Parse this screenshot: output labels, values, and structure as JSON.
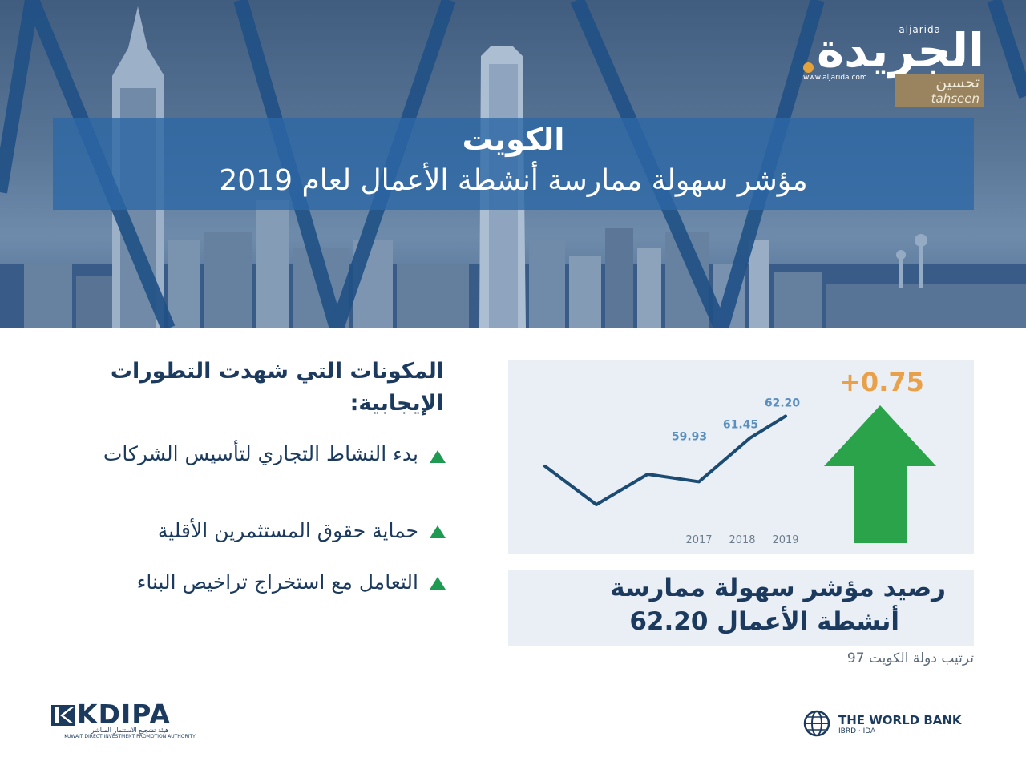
{
  "hero": {
    "title": "الكويت",
    "subtitle": "مؤشر سهولة ممارسة أنشطة الأعمال لعام 2019"
  },
  "logo": {
    "latin": "aljarida",
    "arabic": "الجريدة",
    "site": "www.aljarida.com",
    "tag_ar": "تحسين",
    "tag_en": "tahseen"
  },
  "components": {
    "title": "المكونات التي شهدت التطورات الإيجابية:",
    "items": [
      "بدء النشاط التجاري لتأسيس الشركات",
      "حماية حقوق المستثمرين الأقلية",
      "التعامل مع استخراج تراخيص البناء"
    ]
  },
  "change_label": "+0.75",
  "summary": {
    "line1": "رصيد مؤشر سهولة ممارسة",
    "line2": "أنشطة الأعمال 62.20",
    "rank": "ترتيب دولة الكويت 97"
  },
  "chart_data": {
    "type": "line",
    "x_labels": [
      "2017",
      "2018",
      "2019"
    ],
    "points": [
      {
        "value": null
      },
      {
        "value": null
      },
      {
        "value": null
      },
      {
        "value": 59.93,
        "label": "59.93"
      },
      {
        "value": 61.45,
        "label": "61.45"
      },
      {
        "value": 62.2,
        "label": "62.20"
      }
    ],
    "change": 0.75,
    "line_color": "#1b4a72",
    "arrow_color": "#2aa34a",
    "label_color": "#5b8fbf"
  },
  "footer": {
    "kdipa_name": "KDIPA",
    "kdipa_ar": "هيئة تشجيع الاستثمار المباشر",
    "kdipa_en": "KUWAIT DIRECT INVESTMENT PROMOTION AUTHORITY",
    "worldbank_name": "THE WORLD BANK",
    "worldbank_sub": "IBRD · IDA"
  }
}
